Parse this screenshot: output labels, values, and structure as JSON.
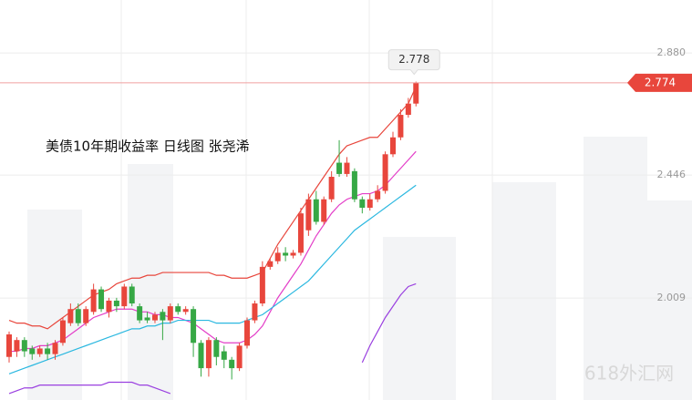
{
  "chart_data": {
    "type": "candlestick",
    "title": "美债10年期收益率  日线图 张尧浠",
    "watermark": "618外汇网",
    "open": [
      1.8,
      1.82,
      1.86,
      1.83,
      1.81,
      1.83,
      1.81,
      1.85,
      1.92,
      1.97,
      1.92,
      1.96,
      2.04,
      1.96,
      2.0,
      1.98,
      2.05,
      1.98,
      1.94,
      1.93,
      1.96,
      1.93,
      1.98,
      1.96,
      1.97,
      1.85,
      1.76,
      1.86,
      1.82,
      1.79,
      1.76,
      1.84,
      1.93,
      1.99,
      2.12,
      2.14,
      2.17,
      2.16,
      2.17,
      2.25,
      2.36,
      2.28,
      2.36,
      2.49,
      2.45,
      2.46,
      2.36,
      2.33,
      2.36,
      2.39,
      2.52,
      2.58,
      2.66,
      2.7
    ],
    "high": [
      1.89,
      1.87,
      1.87,
      1.84,
      1.84,
      1.85,
      1.86,
      1.94,
      1.99,
      1.99,
      1.98,
      2.06,
      2.05,
      2.01,
      2.01,
      2.06,
      2.06,
      1.99,
      1.96,
      1.96,
      1.97,
      1.99,
      1.99,
      1.98,
      1.98,
      1.86,
      1.87,
      1.87,
      1.84,
      1.8,
      1.85,
      1.94,
      2.0,
      2.14,
      2.15,
      2.19,
      2.19,
      2.18,
      2.33,
      2.38,
      2.39,
      2.37,
      2.46,
      2.57,
      2.51,
      2.47,
      2.37,
      2.38,
      2.41,
      2.53,
      2.6,
      2.68,
      2.72,
      2.778
    ],
    "low": [
      1.78,
      1.8,
      1.8,
      1.79,
      1.8,
      1.79,
      1.79,
      1.84,
      1.91,
      1.91,
      1.91,
      1.95,
      1.96,
      1.94,
      1.96,
      1.97,
      1.98,
      1.92,
      1.92,
      1.92,
      1.86,
      1.92,
      1.95,
      1.95,
      1.8,
      1.73,
      1.73,
      1.77,
      1.76,
      1.72,
      1.75,
      1.83,
      1.92,
      1.98,
      2.11,
      2.13,
      2.14,
      2.15,
      2.16,
      2.23,
      2.27,
      2.27,
      2.35,
      2.44,
      2.44,
      2.35,
      2.31,
      2.32,
      2.35,
      2.38,
      2.51,
      2.57,
      2.65,
      2.69
    ],
    "close": [
      1.88,
      1.86,
      1.82,
      1.81,
      1.83,
      1.81,
      1.85,
      1.93,
      1.97,
      1.92,
      1.97,
      2.04,
      1.97,
      2.0,
      1.98,
      2.05,
      1.99,
      1.93,
      1.93,
      1.95,
      1.93,
      1.98,
      1.96,
      1.97,
      1.85,
      1.76,
      1.86,
      1.8,
      1.79,
      1.76,
      1.84,
      1.93,
      1.99,
      2.12,
      2.14,
      2.17,
      2.16,
      2.17,
      2.31,
      2.36,
      2.28,
      2.36,
      2.44,
      2.45,
      2.49,
      2.36,
      2.33,
      2.36,
      2.39,
      2.52,
      2.58,
      2.66,
      2.7,
      2.774
    ],
    "up_color": "#e8463c",
    "down_color": "#36a845",
    "series": [
      {
        "color": "#e8463c",
        "values": [
          1.93,
          1.92,
          1.92,
          1.91,
          1.91,
          1.9,
          1.92,
          1.94,
          1.96,
          1.98,
          2.0,
          2.02,
          2.03,
          2.04,
          2.06,
          2.07,
          2.08,
          2.08,
          2.09,
          2.09,
          2.1,
          2.1,
          2.1,
          2.1,
          2.1,
          2.1,
          2.1,
          2.09,
          2.09,
          2.08,
          2.08,
          2.08,
          2.09,
          2.1,
          2.15,
          2.2,
          2.24,
          2.28,
          2.32,
          2.36,
          2.4,
          2.44,
          2.48,
          2.52,
          2.55,
          2.56,
          2.57,
          2.58,
          2.58,
          2.61,
          2.64,
          2.67,
          2.7,
          2.76
        ]
      },
      {
        "color": "#e33ec8",
        "values": [
          1.82,
          1.82,
          1.83,
          1.83,
          1.84,
          1.84,
          1.85,
          1.86,
          1.88,
          1.9,
          1.92,
          1.94,
          1.95,
          1.96,
          1.97,
          1.97,
          1.97,
          1.96,
          1.96,
          1.95,
          1.95,
          1.94,
          1.94,
          1.93,
          1.92,
          1.9,
          1.88,
          1.86,
          1.85,
          1.85,
          1.85,
          1.86,
          1.88,
          1.91,
          1.96,
          2.01,
          2.05,
          2.09,
          2.13,
          2.18,
          2.23,
          2.27,
          2.31,
          2.34,
          2.36,
          2.37,
          2.38,
          2.38,
          2.39,
          2.41,
          2.44,
          2.47,
          2.5,
          2.53
        ]
      },
      {
        "color": "#2bb8e0",
        "values": [
          1.74,
          1.75,
          1.76,
          1.77,
          1.78,
          1.79,
          1.8,
          1.81,
          1.82,
          1.83,
          1.84,
          1.85,
          1.86,
          1.87,
          1.88,
          1.89,
          1.9,
          1.9,
          1.91,
          1.91,
          1.92,
          1.92,
          1.93,
          1.93,
          1.93,
          1.93,
          1.93,
          1.92,
          1.92,
          1.92,
          1.92,
          1.93,
          1.94,
          1.95,
          1.97,
          1.99,
          2.01,
          2.03,
          2.05,
          2.07,
          2.1,
          2.13,
          2.16,
          2.19,
          2.22,
          2.25,
          2.27,
          2.29,
          2.31,
          2.33,
          2.35,
          2.37,
          2.39,
          2.41
        ]
      },
      {
        "color": "#9a40e0",
        "values": [
          1.67,
          1.68,
          1.69,
          1.69,
          1.7,
          1.7,
          1.7,
          1.7,
          1.7,
          1.7,
          1.7,
          1.7,
          1.7,
          1.71,
          1.71,
          1.71,
          1.71,
          1.7,
          1.7,
          1.69,
          1.68,
          1.67,
          null,
          null,
          null,
          null,
          null,
          null,
          null,
          null,
          null,
          null,
          null,
          null,
          null,
          null,
          null,
          null,
          null,
          null,
          null,
          null,
          null,
          null,
          null,
          null,
          1.78,
          1.84,
          1.89,
          1.94,
          1.98,
          2.02,
          2.05,
          2.06
        ]
      }
    ],
    "ylim": [
      1.647,
      3.068
    ],
    "yticks": [
      2.009,
      2.446,
      {
        "value": 2.88,
        "label": "2.880"
      }
    ],
    "grid": true,
    "high_annotation": 2.778,
    "last_price": 2.774
  }
}
